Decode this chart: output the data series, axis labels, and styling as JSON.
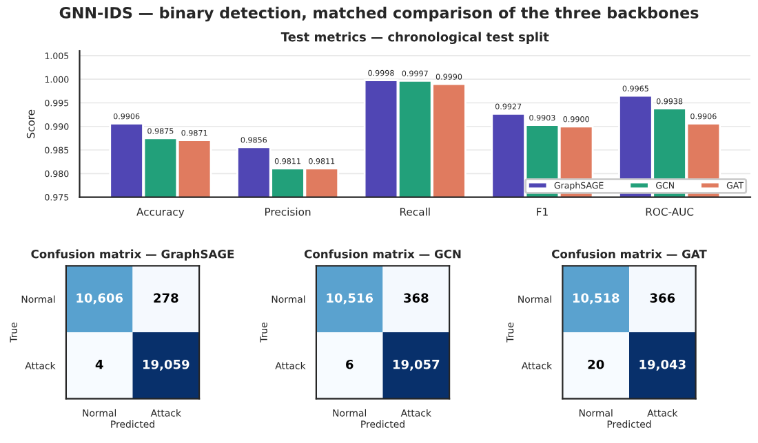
{
  "chart_data": [
    {
      "type": "bar",
      "title": "GNN-IDS — binary detection, matched comparison of the three backbones",
      "subtitle": "Test metrics — chronological test split",
      "ylabel": "Score",
      "categories": [
        "Accuracy",
        "Precision",
        "Recall",
        "F1",
        "ROC-AUC"
      ],
      "series": [
        {
          "name": "GraphSAGE",
          "color": "#5046b4",
          "values": [
            0.9906,
            0.9856,
            0.9998,
            0.9927,
            0.9965
          ],
          "value_labels": [
            "0.9906",
            "0.9856",
            "0.9998",
            "0.9927",
            "0.9965"
          ]
        },
        {
          "name": "GCN",
          "color": "#22a07a",
          "values": [
            0.9875,
            0.9811,
            0.9997,
            0.9903,
            0.9938
          ],
          "value_labels": [
            "0.9875",
            "0.9811",
            "0.9997",
            "0.9903",
            "0.9938"
          ]
        },
        {
          "name": "GAT",
          "color": "#e07b5f",
          "values": [
            0.9871,
            0.9811,
            0.999,
            0.99,
            0.9906
          ],
          "value_labels": [
            "0.9871",
            "0.9811",
            "0.9990",
            "0.9900",
            "0.9906"
          ]
        }
      ],
      "ylim": [
        0.975,
        1.006
      ],
      "yticks": [
        0.975,
        {
          "value": 0.98,
          "label": "0.980"
        },
        0.985,
        {
          "value": 0.99,
          "label": "0.990"
        },
        0.995,
        {
          "value": 1.0,
          "label": "1.000"
        },
        1.005
      ],
      "grid": "y",
      "legend": "bottom right"
    },
    {
      "type": "heatmap",
      "title": "Confusion matrix — GraphSAGE",
      "xlabel": "Predicted",
      "ylabel": "True",
      "categories": [
        "Normal",
        "Attack"
      ],
      "y_categories": [
        "Normal",
        "Attack"
      ],
      "cells": [
        [
          10606,
          278
        ],
        [
          4,
          19059
        ]
      ],
      "cell_labels": [
        [
          "10,606",
          "278"
        ],
        [
          "4",
          "19,059"
        ]
      ]
    },
    {
      "type": "heatmap",
      "title": "Confusion matrix — GCN",
      "xlabel": "Predicted",
      "ylabel": "True",
      "categories": [
        "Normal",
        "Attack"
      ],
      "y_categories": [
        "Normal",
        "Attack"
      ],
      "cells": [
        [
          10516,
          368
        ],
        [
          6,
          19057
        ]
      ],
      "cell_labels": [
        [
          "10,516",
          "368"
        ],
        [
          "6",
          "19,057"
        ]
      ]
    },
    {
      "type": "heatmap",
      "title": "Confusion matrix — GAT",
      "xlabel": "Predicted",
      "ylabel": "True",
      "categories": [
        "Normal",
        "Attack"
      ],
      "y_categories": [
        "Normal",
        "Attack"
      ],
      "cells": [
        [
          10518,
          366
        ],
        [
          20,
          19043
        ]
      ],
      "cell_labels": [
        [
          "10,518",
          "366"
        ],
        [
          "20",
          "19,043"
        ]
      ]
    }
  ]
}
